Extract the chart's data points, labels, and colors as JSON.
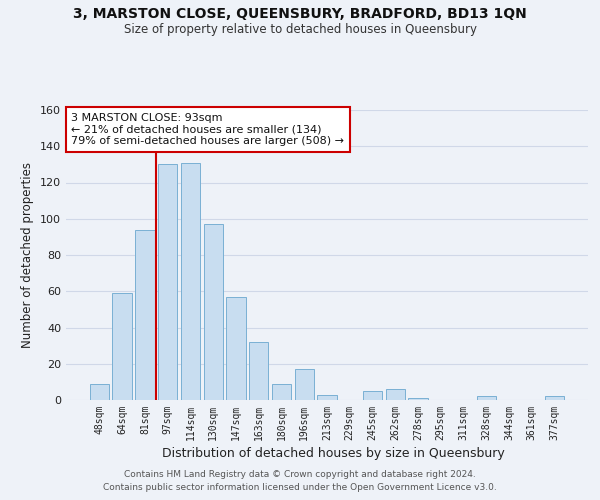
{
  "title": "3, MARSTON CLOSE, QUEENSBURY, BRADFORD, BD13 1QN",
  "subtitle": "Size of property relative to detached houses in Queensbury",
  "xlabel": "Distribution of detached houses by size in Queensbury",
  "ylabel": "Number of detached properties",
  "bar_labels": [
    "48sqm",
    "64sqm",
    "81sqm",
    "97sqm",
    "114sqm",
    "130sqm",
    "147sqm",
    "163sqm",
    "180sqm",
    "196sqm",
    "213sqm",
    "229sqm",
    "245sqm",
    "262sqm",
    "278sqm",
    "295sqm",
    "311sqm",
    "328sqm",
    "344sqm",
    "361sqm",
    "377sqm"
  ],
  "bar_values": [
    9,
    59,
    94,
    130,
    131,
    97,
    57,
    32,
    9,
    17,
    3,
    0,
    5,
    6,
    1,
    0,
    0,
    2,
    0,
    0,
    2
  ],
  "bar_color": "#c8ddf0",
  "bar_edge_color": "#7ab0d4",
  "vline_color": "#cc0000",
  "annotation_text": "3 MARSTON CLOSE: 93sqm\n← 21% of detached houses are smaller (134)\n79% of semi-detached houses are larger (508) →",
  "annotation_box_edge": "#cc0000",
  "annotation_box_facecolor": "#ffffff",
  "ylim": [
    0,
    160
  ],
  "yticks": [
    0,
    20,
    40,
    60,
    80,
    100,
    120,
    140,
    160
  ],
  "background_color": "#eef2f8",
  "grid_color": "#d0d8e8",
  "footer_line1": "Contains HM Land Registry data © Crown copyright and database right 2024.",
  "footer_line2": "Contains public sector information licensed under the Open Government Licence v3.0."
}
